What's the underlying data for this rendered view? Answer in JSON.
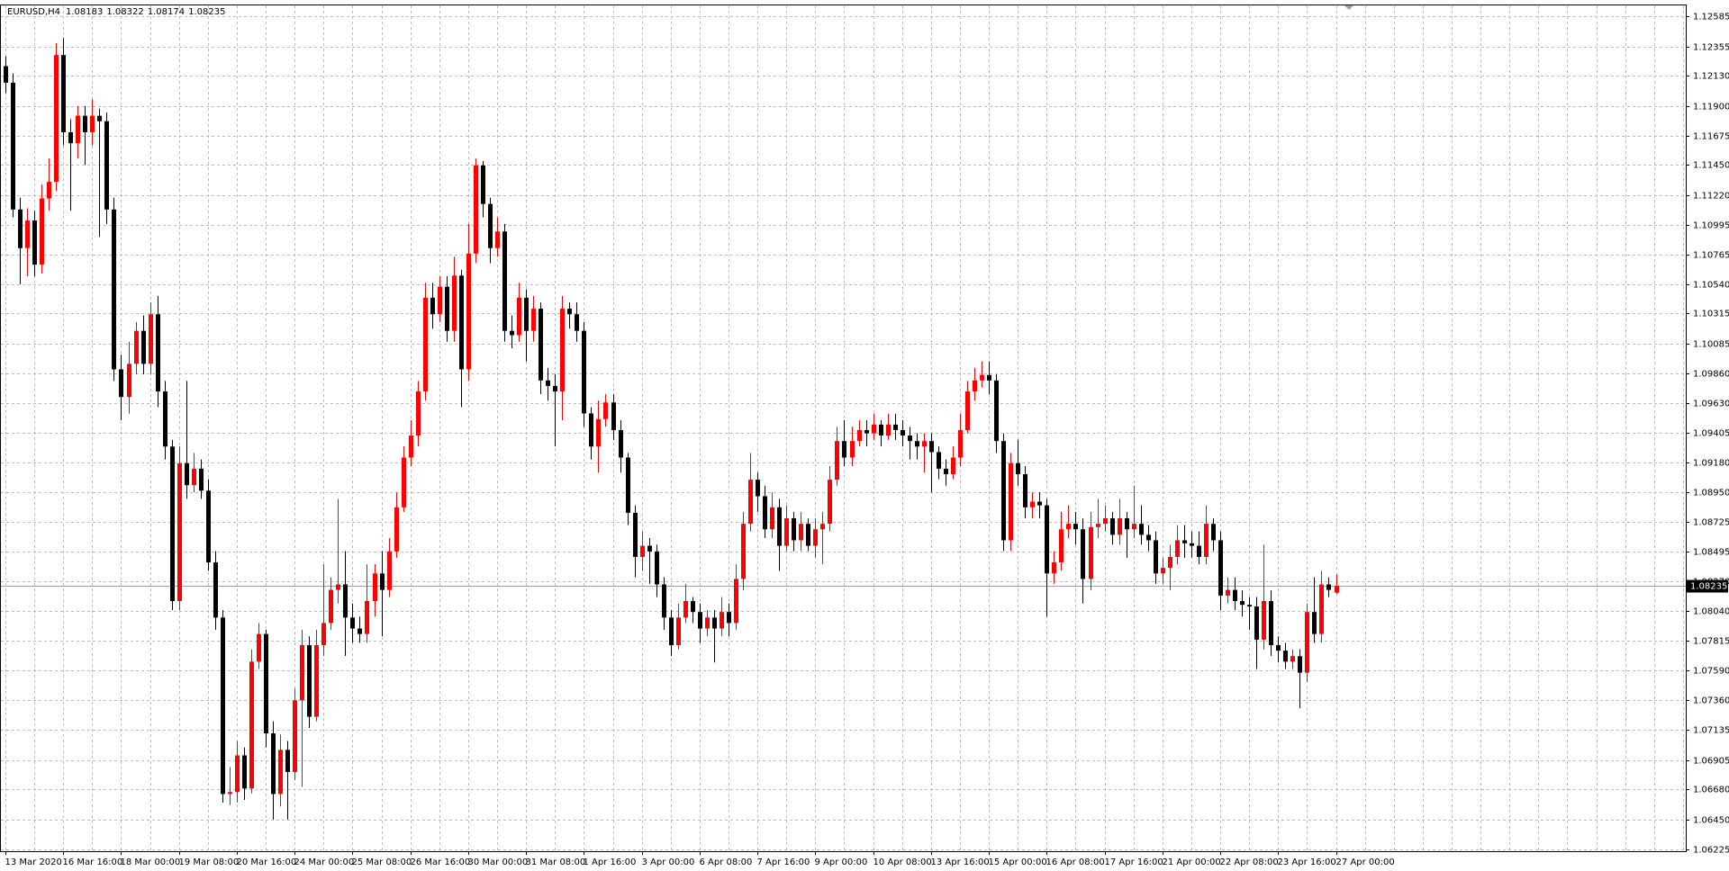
{
  "chart_data": {
    "type": "candlestick",
    "title": "EURUSD,H4",
    "header_values": [
      1.08183,
      1.08322,
      1.08174,
      1.08235
    ],
    "current_price": 1.08235,
    "up_color": "#ff0000",
    "down_color": "#000000",
    "grid": true,
    "ylim": [
      1.06208,
      1.12669
    ],
    "yticks": [
      1.12585,
      1.12355,
      {
        "value": 1.1213,
        "label": "1.12130"
      },
      {
        "value": 1.119,
        "label": "1.11900"
      },
      1.11675,
      {
        "value": 1.1145,
        "label": "1.11450"
      },
      {
        "value": 1.1122,
        "label": "1.11220"
      },
      1.10995,
      1.10765,
      {
        "value": 1.1054,
        "label": "1.10540"
      },
      1.10315,
      1.10085,
      {
        "value": 1.0986,
        "label": "1.09860"
      },
      {
        "value": 1.0963,
        "label": "1.09630"
      },
      1.09405,
      {
        "value": 1.0918,
        "label": "1.09180"
      },
      {
        "value": 1.0895,
        "label": "1.08950"
      },
      1.08725,
      1.08495,
      {
        "value": 1.0827,
        "label": "1.08270"
      },
      {
        "value": 1.0804,
        "label": "1.08040"
      },
      1.07815,
      {
        "value": 1.0759,
        "label": "1.07590"
      },
      {
        "value": 1.0736,
        "label": "1.07360"
      },
      1.07135,
      1.06905,
      {
        "value": 1.0668,
        "label": "1.06680"
      },
      {
        "value": 1.0645,
        "label": "1.06450"
      },
      1.06225
    ],
    "categories": [
      "13 Mar 2020",
      null,
      null,
      null,
      null,
      null,
      null,
      null,
      "16 Mar 16:00",
      null,
      null,
      null,
      null,
      null,
      null,
      null,
      "18 Mar 00:00",
      null,
      null,
      null,
      null,
      null,
      null,
      null,
      "19 Mar 08:00",
      null,
      null,
      null,
      null,
      null,
      null,
      null,
      "20 Mar 16:00",
      null,
      null,
      null,
      null,
      null,
      null,
      null,
      "24 Mar 00:00",
      null,
      null,
      null,
      null,
      null,
      null,
      null,
      "25 Mar 08:00",
      null,
      null,
      null,
      null,
      null,
      null,
      null,
      "26 Mar 16:00",
      null,
      null,
      null,
      null,
      null,
      null,
      null,
      "30 Mar 00:00",
      null,
      null,
      null,
      null,
      null,
      null,
      null,
      "31 Mar 08:00",
      null,
      null,
      null,
      null,
      null,
      null,
      null,
      "1 Apr 16:00",
      null,
      null,
      null,
      null,
      null,
      null,
      null,
      "3 Apr 00:00",
      null,
      null,
      null,
      null,
      null,
      null,
      null,
      "6 Apr 08:00",
      null,
      null,
      null,
      null,
      null,
      null,
      null,
      "7 Apr 16:00",
      null,
      null,
      null,
      null,
      null,
      null,
      null,
      "9 Apr 00:00",
      null,
      null,
      null,
      null,
      null,
      null,
      null,
      "10 Apr 08:00",
      null,
      null,
      null,
      null,
      null,
      null,
      null,
      "13 Apr 16:00",
      null,
      null,
      null,
      null,
      null,
      null,
      null,
      "15 Apr 00:00",
      null,
      null,
      null,
      null,
      null,
      null,
      null,
      "16 Apr 08:00",
      null,
      null,
      null,
      null,
      null,
      null,
      null,
      "17 Apr 16:00",
      null,
      null,
      null,
      null,
      null,
      null,
      null,
      "21 Apr 00:00",
      null,
      null,
      null,
      null,
      null,
      null,
      null,
      "22 Apr 08:00",
      null,
      null,
      null,
      null,
      null,
      null,
      null,
      "23 Apr 16:00",
      null,
      null,
      null,
      null,
      null,
      null,
      null,
      "27 Apr 00:00"
    ],
    "ohlc": [
      [
        1.12205,
        1.1228,
        1.12,
        1.12079
      ],
      [
        1.12079,
        1.1215,
        1.1105,
        1.1111
      ],
      [
        1.1111,
        1.112,
        1.1054,
        1.10815
      ],
      [
        1.10815,
        1.1112,
        1.106,
        1.11026
      ],
      [
        1.11026,
        1.111,
        1.106,
        1.10689
      ],
      [
        1.10689,
        1.113,
        1.1062,
        1.11194
      ],
      [
        1.11194,
        1.115,
        1.111,
        1.11321
      ],
      [
        1.11321,
        1.1238,
        1.1125,
        1.1229
      ],
      [
        1.1229,
        1.1242,
        1.116,
        1.117
      ],
      [
        1.117,
        1.118,
        1.111,
        1.11616
      ],
      [
        1.11616,
        1.119,
        1.115,
        1.11826
      ],
      [
        1.11826,
        1.119,
        1.1145,
        1.117
      ],
      [
        1.117,
        1.1195,
        1.116,
        1.11826
      ],
      [
        1.11826,
        1.1188,
        1.109,
        1.11784
      ],
      [
        1.11784,
        1.1185,
        1.11,
        1.1111
      ],
      [
        1.1111,
        1.112,
        1.098,
        1.09889
      ],
      [
        1.09889,
        1.1,
        1.095,
        1.09678
      ],
      [
        1.09678,
        1.101,
        1.0955,
        1.09931
      ],
      [
        1.09931,
        1.1025,
        1.0985,
        1.10183
      ],
      [
        1.10183,
        1.103,
        1.0985,
        1.09931
      ],
      [
        1.09931,
        1.104,
        1.0985,
        1.1031
      ],
      [
        1.1031,
        1.1045,
        1.096,
        1.0972
      ],
      [
        1.0972,
        1.098,
        1.092,
        1.09299
      ],
      [
        1.09299,
        1.0935,
        1.0805,
        1.08119
      ],
      [
        1.08119,
        1.093,
        1.0805,
        1.09172
      ],
      [
        1.09172,
        1.098,
        1.089,
        1.09004
      ],
      [
        1.09004,
        1.0925,
        1.0895,
        1.0913
      ],
      [
        1.0913,
        1.092,
        1.089,
        1.08962
      ],
      [
        1.08962,
        1.0905,
        1.0835,
        1.08414
      ],
      [
        1.08414,
        1.085,
        1.079,
        1.07993
      ],
      [
        1.07993,
        1.0805,
        1.0658,
        1.06645
      ],
      [
        1.06645,
        1.0685,
        1.0656,
        1.0666
      ],
      [
        1.0666,
        1.0705,
        1.0658,
        1.0694
      ],
      [
        1.0694,
        1.07,
        1.066,
        1.06687
      ],
      [
        1.06687,
        1.0775,
        1.0665,
        1.07656
      ],
      [
        1.07656,
        1.0795,
        1.076,
        1.07867
      ],
      [
        1.07867,
        1.079,
        1.07,
        1.07108
      ],
      [
        1.07108,
        1.072,
        1.0645,
        1.06645
      ],
      [
        1.06645,
        1.071,
        1.0655,
        1.06982
      ],
      [
        1.06982,
        1.0705,
        1.0645,
        1.06813
      ],
      [
        1.06813,
        1.0745,
        1.0675,
        1.07361
      ],
      [
        1.07361,
        1.079,
        1.067,
        1.07782
      ],
      [
        1.07782,
        1.0785,
        1.0715,
        1.07235
      ],
      [
        1.07235,
        1.079,
        1.072,
        1.07782
      ],
      [
        1.07782,
        1.084,
        1.077,
        1.07951
      ],
      [
        1.07951,
        1.083,
        1.079,
        1.08204
      ],
      [
        1.08204,
        1.089,
        1.081,
        1.08246
      ],
      [
        1.08246,
        1.085,
        1.077,
        1.07993
      ],
      [
        1.07993,
        1.081,
        1.078,
        1.07909
      ],
      [
        1.07909,
        1.08,
        1.078,
        1.07867
      ],
      [
        1.07867,
        1.084,
        1.078,
        1.08119
      ],
      [
        1.08119,
        1.084,
        1.08,
        1.0833
      ],
      [
        1.0833,
        1.085,
        1.0785,
        1.08204
      ],
      [
        1.08204,
        1.086,
        1.0815,
        1.08498
      ],
      [
        1.08498,
        1.0895,
        1.0845,
        1.08835
      ],
      [
        1.08835,
        1.093,
        1.088,
        1.09215
      ],
      [
        1.09215,
        1.095,
        1.0915,
        1.09383
      ],
      [
        1.09383,
        1.098,
        1.093,
        1.0972
      ],
      [
        1.0972,
        1.1055,
        1.0965,
        1.10436
      ],
      [
        1.10436,
        1.1055,
        1.102,
        1.1031
      ],
      [
        1.1031,
        1.106,
        1.1025,
        1.1052
      ],
      [
        1.1052,
        1.106,
        1.101,
        1.10183
      ],
      [
        1.10183,
        1.1075,
        1.101,
        1.10605
      ],
      [
        1.10605,
        1.1065,
        1.096,
        1.09889
      ],
      [
        1.09889,
        1.11,
        1.098,
        1.10773
      ],
      [
        1.10773,
        1.115,
        1.107,
        1.11447
      ],
      [
        1.11447,
        1.1148,
        1.1105,
        1.11152
      ],
      [
        1.11152,
        1.112,
        1.107,
        1.10815
      ],
      [
        1.10815,
        1.1105,
        1.1075,
        1.10942
      ],
      [
        1.10942,
        1.11,
        1.101,
        1.10183
      ],
      [
        1.10183,
        1.103,
        1.1005,
        1.1015
      ],
      [
        1.1015,
        1.1055,
        1.101,
        1.10436
      ],
      [
        1.10436,
        1.105,
        1.0995,
        1.10183
      ],
      [
        1.10183,
        1.1045,
        1.101,
        1.10352
      ],
      [
        1.10352,
        1.104,
        1.097,
        1.09804
      ],
      [
        1.09804,
        1.099,
        1.0965,
        1.09762
      ],
      [
        1.09762,
        1.0985,
        1.093,
        1.0972
      ],
      [
        1.0972,
        1.1045,
        1.095,
        1.10352
      ],
      [
        1.10352,
        1.104,
        1.102,
        1.1031
      ],
      [
        1.1031,
        1.104,
        1.101,
        1.10183
      ],
      [
        1.10183,
        1.1025,
        1.0945,
        1.09552
      ],
      [
        1.09552,
        1.096,
        1.092,
        1.09299
      ],
      [
        1.09299,
        1.0965,
        1.091,
        1.09509
      ],
      [
        1.09509,
        1.097,
        1.0945,
        1.09636
      ],
      [
        1.09636,
        1.097,
        1.0935,
        1.09425
      ],
      [
        1.09425,
        1.095,
        1.091,
        1.09215
      ],
      [
        1.09215,
        1.0925,
        1.087,
        1.08793
      ],
      [
        1.08793,
        1.0885,
        1.083,
        1.08456
      ],
      [
        1.08456,
        1.0865,
        1.0835,
        1.08541
      ],
      [
        1.08541,
        1.086,
        1.0825,
        1.08498
      ],
      [
        1.08498,
        1.0855,
        1.0815,
        1.08246
      ],
      [
        1.08246,
        1.083,
        1.079,
        1.07993
      ],
      [
        1.07993,
        1.0805,
        1.077,
        1.07782
      ],
      [
        1.07782,
        1.081,
        1.0775,
        1.07993
      ],
      [
        1.07993,
        1.0825,
        1.0795,
        1.08119
      ],
      [
        1.08119,
        1.0815,
        1.0795,
        1.08035
      ],
      [
        1.08035,
        1.081,
        1.078,
        1.07909
      ],
      [
        1.07909,
        1.0805,
        1.0785,
        1.07993
      ],
      [
        1.07993,
        1.0805,
        1.0765,
        1.07909
      ],
      [
        1.07909,
        1.0815,
        1.0785,
        1.08035
      ],
      [
        1.08035,
        1.081,
        1.0785,
        1.07951
      ],
      [
        1.07951,
        1.084,
        1.079,
        1.08288
      ],
      [
        1.08288,
        1.088,
        1.082,
        1.08709
      ],
      [
        1.08709,
        1.0925,
        1.0865,
        1.09046
      ],
      [
        1.09046,
        1.091,
        1.088,
        1.0892
      ],
      [
        1.0892,
        1.09,
        1.086,
        1.08667
      ],
      [
        1.08667,
        1.0895,
        1.086,
        1.08835
      ],
      [
        1.08835,
        1.089,
        1.0835,
        1.08541
      ],
      [
        1.08541,
        1.0885,
        1.085,
        1.08751
      ],
      [
        1.08751,
        1.088,
        1.085,
        1.08583
      ],
      [
        1.08583,
        1.088,
        1.085,
        1.08709
      ],
      [
        1.08709,
        1.0875,
        1.085,
        1.08541
      ],
      [
        1.08541,
        1.0875,
        1.0845,
        1.08667
      ],
      [
        1.08667,
        1.088,
        1.084,
        1.08709
      ],
      [
        1.08709,
        1.0915,
        1.0865,
        1.09046
      ],
      [
        1.09046,
        1.0945,
        1.09,
        1.09341
      ],
      [
        1.09341,
        1.095,
        1.0915,
        1.09215
      ],
      [
        1.09215,
        1.0945,
        1.0915,
        1.09341
      ],
      [
        1.09341,
        1.095,
        1.093,
        1.09425
      ],
      [
        1.09425,
        1.095,
        1.093,
        1.094
      ],
      [
        1.094,
        1.0955,
        1.0935,
        1.09467
      ],
      [
        1.09467,
        1.095,
        1.093,
        1.09383
      ],
      [
        1.09383,
        1.0955,
        1.0935,
        1.09467
      ],
      [
        1.09467,
        1.0955,
        1.0935,
        1.09425
      ],
      [
        1.09425,
        1.095,
        1.093,
        1.09383
      ],
      [
        1.09383,
        1.0945,
        1.092,
        1.09341
      ],
      [
        1.09341,
        1.094,
        1.092,
        1.09299
      ],
      [
        1.09299,
        1.094,
        1.091,
        1.09341
      ],
      [
        1.09341,
        1.094,
        1.0895,
        1.09257
      ],
      [
        1.09257,
        1.093,
        1.0905,
        1.0913
      ],
      [
        1.0913,
        1.092,
        1.09,
        1.09088
      ],
      [
        1.09088,
        1.093,
        1.0905,
        1.09215
      ],
      [
        1.09215,
        1.0955,
        1.0915,
        1.09425
      ],
      [
        1.09425,
        1.098,
        1.094,
        1.0972
      ],
      [
        1.0972,
        1.099,
        1.0965,
        1.09804
      ],
      [
        1.09804,
        1.0995,
        1.0975,
        1.09846
      ],
      [
        1.09846,
        1.0995,
        1.097,
        1.09804
      ],
      [
        1.09804,
        1.0985,
        1.0925,
        1.09341
      ],
      [
        1.09341,
        1.094,
        1.085,
        1.08583
      ],
      [
        1.08583,
        1.0925,
        1.085,
        1.09172
      ],
      [
        1.09172,
        1.0935,
        1.09,
        1.09088
      ],
      [
        1.09088,
        1.0915,
        1.0875,
        1.08835
      ],
      [
        1.08835,
        1.0895,
        1.0875,
        1.08878
      ],
      [
        1.08878,
        1.0895,
        1.0875,
        1.0885
      ],
      [
        1.0885,
        1.089,
        1.08,
        1.0833
      ],
      [
        1.0833,
        1.085,
        1.0825,
        1.08414
      ],
      [
        1.08414,
        1.088,
        1.0835,
        1.08667
      ],
      [
        1.08667,
        1.0885,
        1.086,
        1.08709
      ],
      [
        1.08709,
        1.088,
        1.0855,
        1.08667
      ],
      [
        1.08667,
        1.0875,
        1.081,
        1.08288
      ],
      [
        1.08288,
        1.088,
        1.082,
        1.08684
      ],
      [
        1.08684,
        1.089,
        1.086,
        1.08709
      ],
      [
        1.08709,
        1.0885,
        1.0865,
        1.08751
      ],
      [
        1.08751,
        1.088,
        1.0855,
        1.08625
      ],
      [
        1.08625,
        1.089,
        1.0855,
        1.08751
      ],
      [
        1.08751,
        1.088,
        1.0845,
        1.08667
      ],
      [
        1.08667,
        1.09,
        1.086,
        1.08709
      ],
      [
        1.08709,
        1.0885,
        1.0855,
        1.08625
      ],
      [
        1.08625,
        1.087,
        1.085,
        1.08583
      ],
      [
        1.08583,
        1.0865,
        1.0825,
        1.0833
      ],
      [
        1.0833,
        1.0845,
        1.0825,
        1.08372
      ],
      [
        1.08372,
        1.0855,
        1.082,
        1.08456
      ],
      [
        1.08456,
        1.087,
        1.084,
        1.08583
      ],
      [
        1.08583,
        1.087,
        1.0845,
        1.0856
      ],
      [
        1.0856,
        1.0865,
        1.0845,
        1.08541
      ],
      [
        1.08541,
        1.0865,
        1.084,
        1.08456
      ],
      [
        1.08456,
        1.0885,
        1.084,
        1.08709
      ],
      [
        1.08709,
        1.0875,
        1.085,
        1.08583
      ],
      [
        1.08583,
        1.0865,
        1.0805,
        1.08161
      ],
      [
        1.08161,
        1.083,
        1.081,
        1.08204
      ],
      [
        1.08204,
        1.083,
        1.0805,
        1.08119
      ],
      [
        1.08119,
        1.082,
        1.08,
        1.0809
      ],
      [
        1.0809,
        1.0815,
        1.079,
        1.08077
      ],
      [
        1.08077,
        1.0815,
        1.076,
        1.07824
      ],
      [
        1.07824,
        1.0855,
        1.0775,
        1.08119
      ],
      [
        1.08119,
        1.082,
        1.077,
        1.07782
      ],
      [
        1.07782,
        1.0785,
        1.0765,
        1.0774
      ],
      [
        1.0774,
        1.078,
        1.076,
        1.07656
      ],
      [
        1.07656,
        1.0775,
        1.076,
        1.07698
      ],
      [
        1.07698,
        1.0775,
        1.073,
        1.07572
      ],
      [
        1.07572,
        1.081,
        1.075,
        1.08035
      ],
      [
        1.08035,
        1.083,
        1.078,
        1.07867
      ],
      [
        1.07867,
        1.0835,
        1.078,
        1.08246
      ],
      [
        1.08246,
        1.083,
        1.0815,
        1.08204
      ],
      [
        1.08183,
        1.08322,
        1.08174,
        1.08235
      ]
    ]
  }
}
